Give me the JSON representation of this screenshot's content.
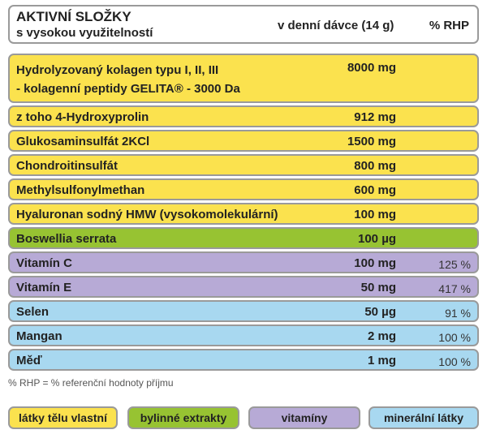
{
  "header": {
    "title": "AKTIVNÍ SLOŽKY",
    "subtitle": "s vysokou využitelností",
    "dose_col": "v denní dávce (14 g)",
    "rhp_col": "% RHP"
  },
  "rows": [
    {
      "name1": "Hydrolyzovaný kolagen typu I, II, III",
      "name2": "- kolagenní peptidy GELITA® - 3000 Da",
      "dose": "8000 mg",
      "rhp": "",
      "category": "body"
    },
    {
      "name": "z toho 4-Hydroxyprolin",
      "dose": "912 mg",
      "rhp": "",
      "category": "body"
    },
    {
      "name": "Glukosaminsulfát 2KCl",
      "dose": "1500 mg",
      "rhp": "",
      "category": "body"
    },
    {
      "name": "Chondroitinsulfát",
      "dose": "800 mg",
      "rhp": "",
      "category": "body"
    },
    {
      "name": "Methylsulfonylmethan",
      "dose": "600 mg",
      "rhp": "",
      "category": "body"
    },
    {
      "name": "Hyaluronan sodný HMW (vysokomolekulární)",
      "dose": "100 mg",
      "rhp": "",
      "category": "body"
    },
    {
      "name": "Boswellia serrata",
      "dose": "100 µg",
      "rhp": "",
      "category": "herbal"
    },
    {
      "name": "Vitamín C",
      "dose": "100 mg",
      "rhp": "125 %",
      "category": "vitamin"
    },
    {
      "name": "Vitamín E",
      "dose": "50 mg",
      "rhp": "417 %",
      "category": "vitamin"
    },
    {
      "name": "Selen",
      "dose": "50 µg",
      "rhp": "91 %",
      "category": "mineral"
    },
    {
      "name": "Mangan",
      "dose": "2 mg",
      "rhp": "100 %",
      "category": "mineral"
    },
    {
      "name": "Měď",
      "dose": "1 mg",
      "rhp": "100 %",
      "category": "mineral"
    }
  ],
  "footnote": "% RHP = % referenční hodnoty příjmu",
  "legend": {
    "body": "látky tělu vlastní",
    "herbal": "bylinné extrakty",
    "vitamin": "vitamíny",
    "mineral": "minerální látky"
  },
  "colors": {
    "body": "#fbe24e",
    "herbal": "#97c332",
    "vitamin": "#b7aad6",
    "mineral": "#a8d8f0",
    "border": "#9a9a9a"
  }
}
